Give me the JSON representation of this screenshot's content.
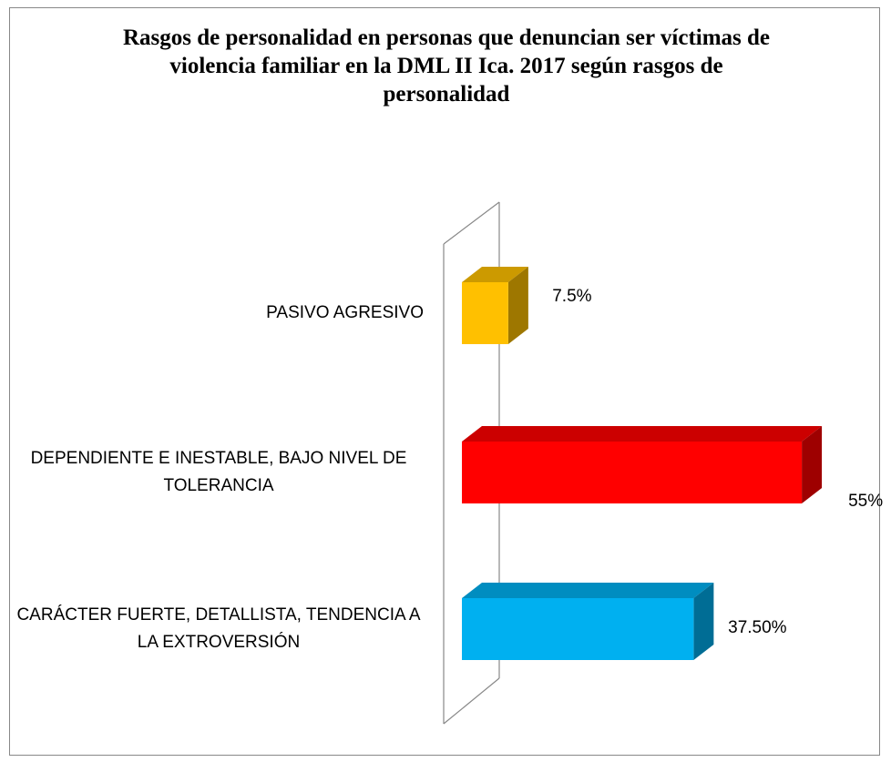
{
  "chart_data": {
    "type": "bar3d_horizontal",
    "title": "Rasgos de personalidad en personas que denuncian ser víctimas de violencia familiar en la DML II Ica. 2017 según rasgos de personalidad",
    "categories": [
      "PASIVO AGRESIVO",
      "DEPENDIENTE E INESTABLE, BAJO NIVEL DE TOLERANCIA",
      "CARÁCTER FUERTE, DETALLISTA, TENDENCIA A LA EXTROVERSIÓN"
    ],
    "values": [
      7.5,
      55,
      37.5
    ],
    "value_labels": [
      "7.5%",
      "55%",
      "37.50%"
    ],
    "colors": [
      "#FFC000",
      "#FF0000",
      "#00B0F0"
    ],
    "xlim": [
      0,
      60
    ]
  }
}
